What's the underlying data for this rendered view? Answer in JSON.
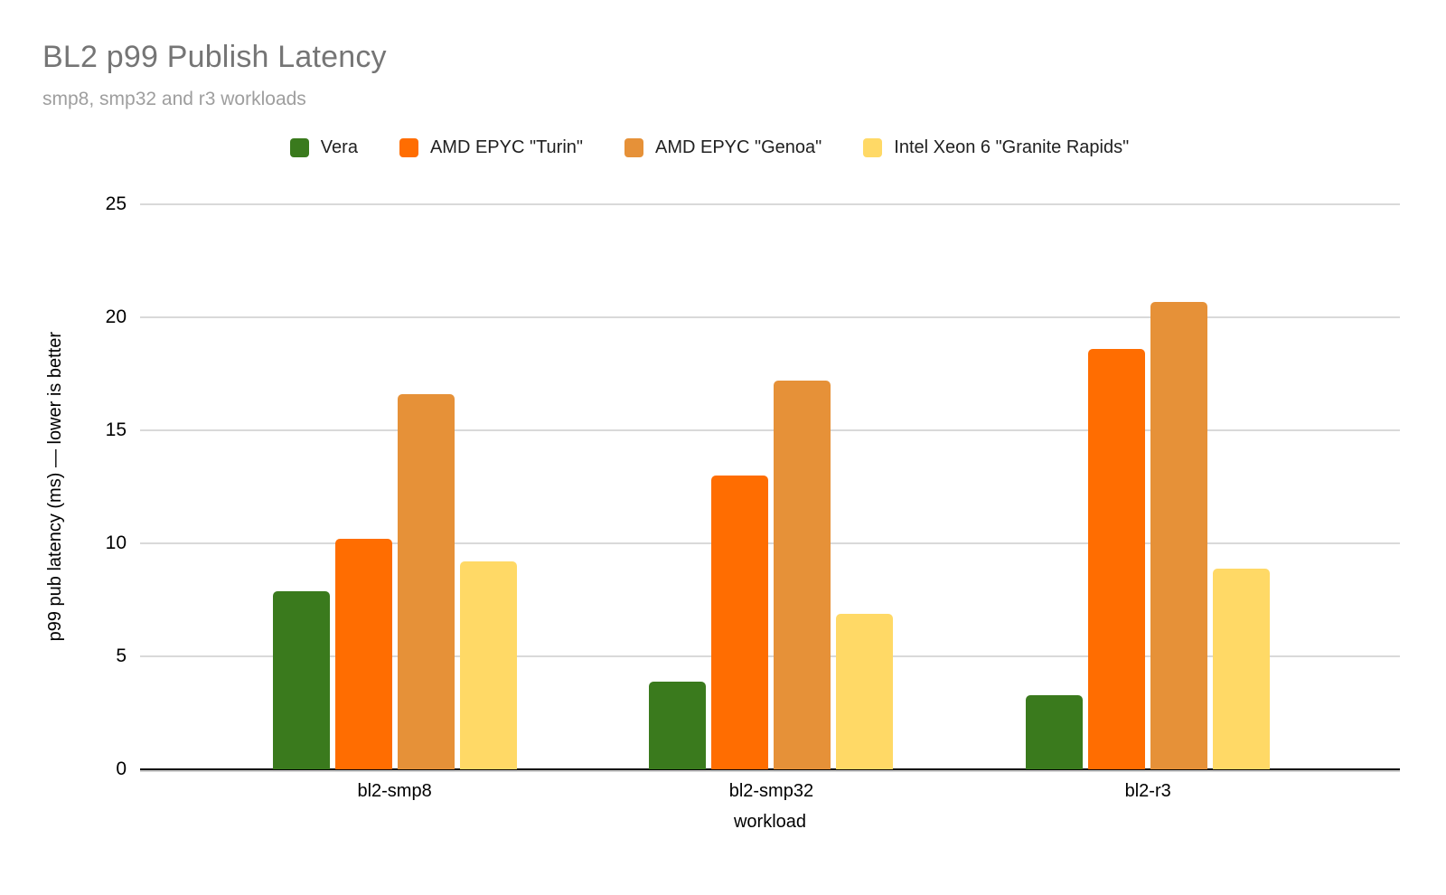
{
  "header": {
    "title": "BL2 p99 Publish Latency",
    "subtitle": "smp8, smp32 and r3 workloads"
  },
  "axes": {
    "y_title": "p99 pub latency (ms) — lower is better",
    "x_title": "workload"
  },
  "colors": {
    "title_text": "#757575",
    "subtitle_text": "#9e9e9e",
    "gridline": "#d9d9d9",
    "axis_line": "#000000",
    "tick_text": "#000000"
  },
  "chart_data": {
    "type": "bar",
    "title": "BL2 p99 Publish Latency",
    "subtitle": "smp8, smp32 and r3 workloads",
    "xlabel": "workload",
    "ylabel": "p99 pub latency (ms) — lower is better",
    "categories": [
      "bl2-smp8",
      "bl2-smp32",
      "bl2-r3"
    ],
    "series": [
      {
        "name": "Vera",
        "color": "#3a7a1d",
        "values": [
          7.9,
          3.9,
          3.3
        ]
      },
      {
        "name": "AMD EPYC \"Turin\"",
        "color": "#ff6d01",
        "values": [
          10.2,
          13.0,
          18.6
        ]
      },
      {
        "name": "AMD EPYC \"Genoa\"",
        "color": "#e69138",
        "values": [
          16.6,
          17.2,
          20.7
        ]
      },
      {
        "name": "Intel Xeon 6 \"Granite Rapids\"",
        "color": "#ffd966",
        "values": [
          9.2,
          6.9,
          8.9
        ]
      }
    ],
    "ylim": [
      0,
      25
    ],
    "yticks": [
      0,
      5,
      10,
      15,
      20,
      25
    ],
    "grid": true,
    "legend_position": "top"
  }
}
